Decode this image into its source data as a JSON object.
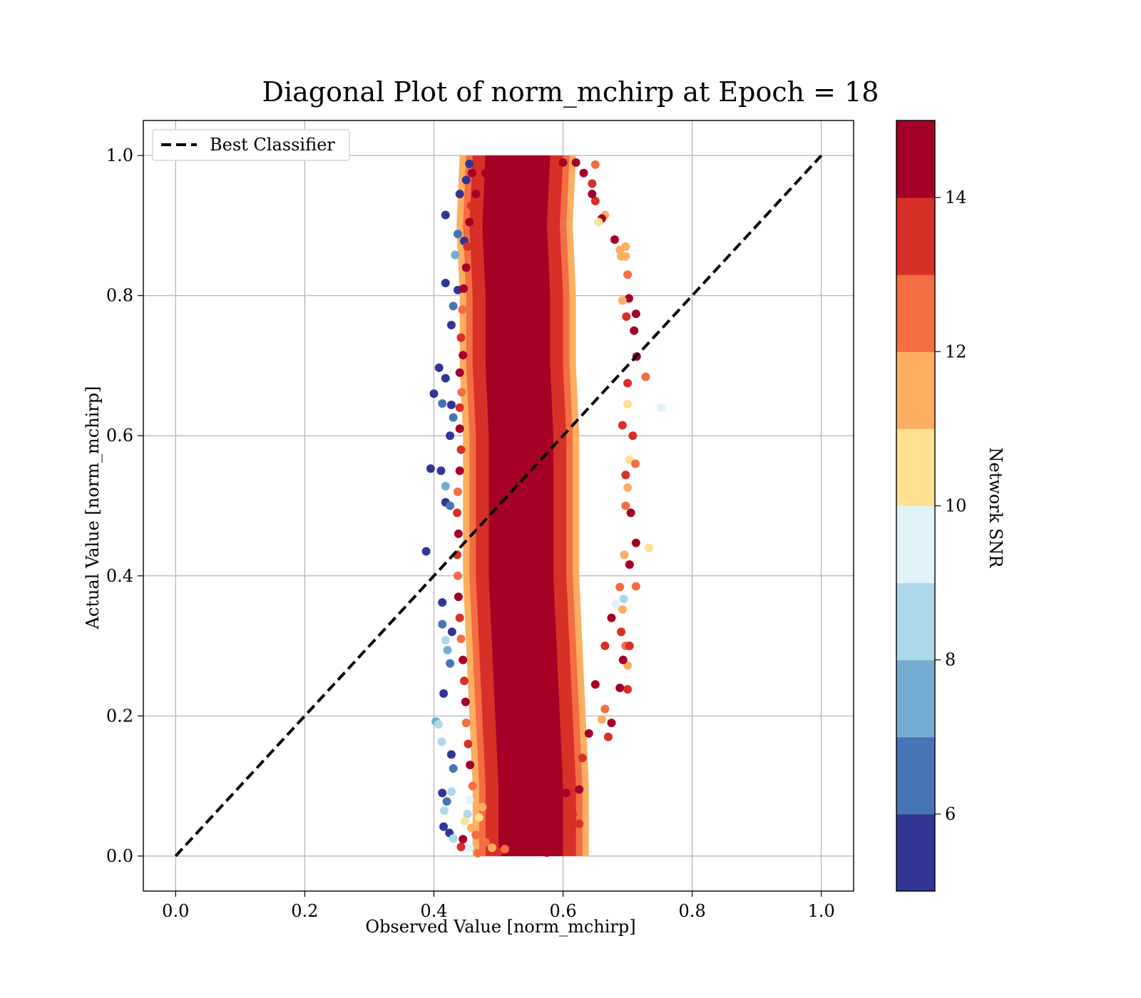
{
  "chart_data": {
    "type": "scatter",
    "title": "Diagonal Plot of norm_mchirp at Epoch = 18",
    "xlabel": "Observed Value [norm_mchirp]",
    "ylabel": "Actual Value [norm_mchirp]",
    "xlim": [
      -0.05,
      1.05
    ],
    "ylim": [
      -0.05,
      1.05
    ],
    "x_ticks": [
      0.0,
      0.2,
      0.4,
      0.6,
      0.8,
      1.0
    ],
    "y_ticks": [
      0.0,
      0.2,
      0.4,
      0.6,
      0.8,
      1.0
    ],
    "x_tick_labels": [
      "0.0",
      "0.2",
      "0.4",
      "0.6",
      "0.8",
      "1.0"
    ],
    "y_tick_labels": [
      "0.0",
      "0.2",
      "0.4",
      "0.6",
      "0.8",
      "1.0"
    ],
    "grid": true,
    "legend": {
      "placement": "upper-left",
      "entries": [
        {
          "label": "Best Classifier",
          "style": "dashed",
          "color": "#000000"
        }
      ]
    },
    "reference_line": {
      "name": "Best Classifier",
      "x": [
        0.0,
        1.0
      ],
      "y": [
        0.0,
        1.0
      ]
    },
    "colorbar": {
      "label": "Network SNR",
      "range": [
        5,
        15
      ],
      "ticks": [
        6,
        8,
        10,
        12,
        14
      ],
      "tick_labels": [
        "6",
        "8",
        "10",
        "12",
        "14"
      ],
      "colors": [
        "#313695",
        "#4575b4",
        "#74add1",
        "#abd9e9",
        "#e0f3f8",
        "#fee090",
        "#fdae61",
        "#f46d43",
        "#d73027",
        "#a50026"
      ]
    },
    "scatter_summary": {
      "x_center_by_y": [
        [
          0.0,
          0.55
        ],
        [
          0.1,
          0.55
        ],
        [
          0.2,
          0.545
        ],
        [
          0.3,
          0.54
        ],
        [
          0.4,
          0.535
        ],
        [
          0.5,
          0.535
        ],
        [
          0.6,
          0.535
        ],
        [
          0.7,
          0.53
        ],
        [
          0.8,
          0.53
        ],
        [
          0.9,
          0.525
        ],
        [
          1.0,
          0.53
        ]
      ],
      "x_range": [
        0.385,
        0.755
      ],
      "y_range": [
        0.0,
        1.0
      ]
    },
    "points": [
      [
        0.459,
        0.975,
        14
      ],
      [
        0.44,
        0.945,
        5
      ],
      [
        0.45,
        0.965,
        5
      ],
      [
        0.455,
        0.988,
        5
      ],
      [
        0.418,
        0.915,
        5
      ],
      [
        0.437,
        0.888,
        6
      ],
      [
        0.447,
        0.878,
        5
      ],
      [
        0.433,
        0.858,
        7
      ],
      [
        0.418,
        0.818,
        5
      ],
      [
        0.437,
        0.808,
        5
      ],
      [
        0.43,
        0.785,
        6
      ],
      [
        0.427,
        0.758,
        5
      ],
      [
        0.408,
        0.697,
        5
      ],
      [
        0.418,
        0.682,
        5
      ],
      [
        0.4,
        0.66,
        5
      ],
      [
        0.413,
        0.646,
        6
      ],
      [
        0.427,
        0.644,
        5
      ],
      [
        0.43,
        0.626,
        6
      ],
      [
        0.425,
        0.6,
        5
      ],
      [
        0.395,
        0.553,
        5
      ],
      [
        0.411,
        0.55,
        5
      ],
      [
        0.418,
        0.528,
        7
      ],
      [
        0.418,
        0.505,
        5
      ],
      [
        0.425,
        0.5,
        6
      ],
      [
        0.388,
        0.435,
        5
      ],
      [
        0.413,
        0.362,
        5
      ],
      [
        0.413,
        0.331,
        6
      ],
      [
        0.428,
        0.32,
        5
      ],
      [
        0.418,
        0.308,
        8
      ],
      [
        0.421,
        0.294,
        7
      ],
      [
        0.425,
        0.275,
        6
      ],
      [
        0.415,
        0.232,
        5
      ],
      [
        0.403,
        0.192,
        7
      ],
      [
        0.407,
        0.188,
        8
      ],
      [
        0.412,
        0.163,
        8
      ],
      [
        0.427,
        0.145,
        5
      ],
      [
        0.43,
        0.125,
        6
      ],
      [
        0.427,
        0.092,
        8
      ],
      [
        0.413,
        0.09,
        5
      ],
      [
        0.42,
        0.078,
        6
      ],
      [
        0.416,
        0.065,
        8
      ],
      [
        0.415,
        0.042,
        5
      ],
      [
        0.424,
        0.033,
        5
      ],
      [
        0.43,
        0.025,
        8
      ],
      [
        0.445,
        0.024,
        14
      ],
      [
        0.442,
        0.013,
        13
      ],
      [
        0.455,
        0.012,
        9
      ],
      [
        0.468,
        0.004,
        12
      ],
      [
        0.5,
        0.006,
        13
      ],
      [
        0.575,
        0.005,
        14
      ],
      [
        0.605,
        0.09,
        14
      ],
      [
        0.615,
        0.06,
        13
      ],
      [
        0.625,
        0.046,
        13
      ],
      [
        0.625,
        0.095,
        14
      ],
      [
        0.63,
        0.14,
        13
      ],
      [
        0.64,
        0.175,
        14
      ],
      [
        0.65,
        0.245,
        14
      ],
      [
        0.665,
        0.3,
        13
      ],
      [
        0.675,
        0.34,
        14
      ],
      [
        0.682,
        0.36,
        9
      ],
      [
        0.688,
        0.384,
        12
      ],
      [
        0.692,
        0.352,
        11
      ],
      [
        0.694,
        0.367,
        8
      ],
      [
        0.697,
        0.3,
        12
      ],
      [
        0.703,
        0.3,
        13
      ],
      [
        0.7,
        0.272,
        11
      ],
      [
        0.7,
        0.238,
        13
      ],
      [
        0.693,
        0.28,
        14
      ],
      [
        0.69,
        0.32,
        13
      ],
      [
        0.688,
        0.24,
        14
      ],
      [
        0.675,
        0.19,
        14
      ],
      [
        0.665,
        0.21,
        12
      ],
      [
        0.66,
        0.195,
        11
      ],
      [
        0.67,
        0.17,
        13
      ],
      [
        0.713,
        0.385,
        12
      ],
      [
        0.703,
        0.416,
        14
      ],
      [
        0.695,
        0.43,
        11
      ],
      [
        0.713,
        0.447,
        14
      ],
      [
        0.733,
        0.44,
        10
      ],
      [
        0.705,
        0.49,
        14
      ],
      [
        0.697,
        0.5,
        12
      ],
      [
        0.7,
        0.526,
        11
      ],
      [
        0.697,
        0.544,
        13
      ],
      [
        0.703,
        0.566,
        10
      ],
      [
        0.712,
        0.56,
        12
      ],
      [
        0.708,
        0.6,
        13
      ],
      [
        0.692,
        0.615,
        13
      ],
      [
        0.7,
        0.645,
        10
      ],
      [
        0.752,
        0.64,
        9
      ],
      [
        0.728,
        0.684,
        12
      ],
      [
        0.714,
        0.713,
        14
      ],
      [
        0.7,
        0.675,
        13
      ],
      [
        0.71,
        0.75,
        14
      ],
      [
        0.698,
        0.77,
        13
      ],
      [
        0.713,
        0.774,
        14
      ],
      [
        0.702,
        0.796,
        14
      ],
      [
        0.692,
        0.793,
        11
      ],
      [
        0.7,
        0.83,
        12
      ],
      [
        0.69,
        0.856,
        11
      ],
      [
        0.697,
        0.856,
        11
      ],
      [
        0.697,
        0.87,
        11
      ],
      [
        0.688,
        0.865,
        11
      ],
      [
        0.68,
        0.88,
        14
      ],
      [
        0.665,
        0.915,
        11
      ],
      [
        0.66,
        0.91,
        14
      ],
      [
        0.655,
        0.905,
        10
      ],
      [
        0.645,
        0.96,
        13
      ],
      [
        0.65,
        0.935,
        13
      ],
      [
        0.645,
        0.945,
        14
      ],
      [
        0.632,
        0.975,
        14
      ],
      [
        0.62,
        0.99,
        14
      ],
      [
        0.65,
        0.987,
        12
      ],
      [
        0.6,
        0.99,
        14
      ],
      [
        0.57,
        0.97,
        14
      ],
      [
        0.48,
        0.975,
        14
      ],
      [
        0.465,
        0.945,
        14
      ],
      [
        0.458,
        0.928,
        13
      ],
      [
        0.455,
        0.905,
        14
      ],
      [
        0.452,
        0.87,
        13
      ],
      [
        0.45,
        0.84,
        14
      ],
      [
        0.446,
        0.81,
        14
      ],
      [
        0.444,
        0.78,
        12
      ],
      [
        0.442,
        0.74,
        13
      ],
      [
        0.445,
        0.715,
        14
      ],
      [
        0.44,
        0.69,
        14
      ],
      [
        0.443,
        0.662,
        12
      ],
      [
        0.44,
        0.64,
        13
      ],
      [
        0.44,
        0.61,
        14
      ],
      [
        0.442,
        0.58,
        13
      ],
      [
        0.44,
        0.55,
        14
      ],
      [
        0.437,
        0.52,
        12
      ],
      [
        0.436,
        0.49,
        13
      ],
      [
        0.438,
        0.46,
        14
      ],
      [
        0.436,
        0.43,
        13
      ],
      [
        0.437,
        0.4,
        12
      ],
      [
        0.438,
        0.37,
        14
      ],
      [
        0.44,
        0.34,
        13
      ],
      [
        0.442,
        0.31,
        12
      ],
      [
        0.445,
        0.28,
        14
      ],
      [
        0.447,
        0.25,
        13
      ],
      [
        0.449,
        0.22,
        14
      ],
      [
        0.45,
        0.19,
        12
      ],
      [
        0.453,
        0.16,
        13
      ],
      [
        0.456,
        0.13,
        14
      ],
      [
        0.46,
        0.1,
        12
      ],
      [
        0.455,
        0.08,
        9
      ],
      [
        0.452,
        0.06,
        8
      ],
      [
        0.448,
        0.05,
        10
      ],
      [
        0.458,
        0.04,
        11
      ],
      [
        0.465,
        0.03,
        12
      ],
      [
        0.47,
        0.055,
        10
      ],
      [
        0.475,
        0.07,
        11
      ],
      [
        0.48,
        0.02,
        12
      ],
      [
        0.49,
        0.012,
        11
      ],
      [
        0.51,
        0.01,
        12
      ]
    ]
  }
}
